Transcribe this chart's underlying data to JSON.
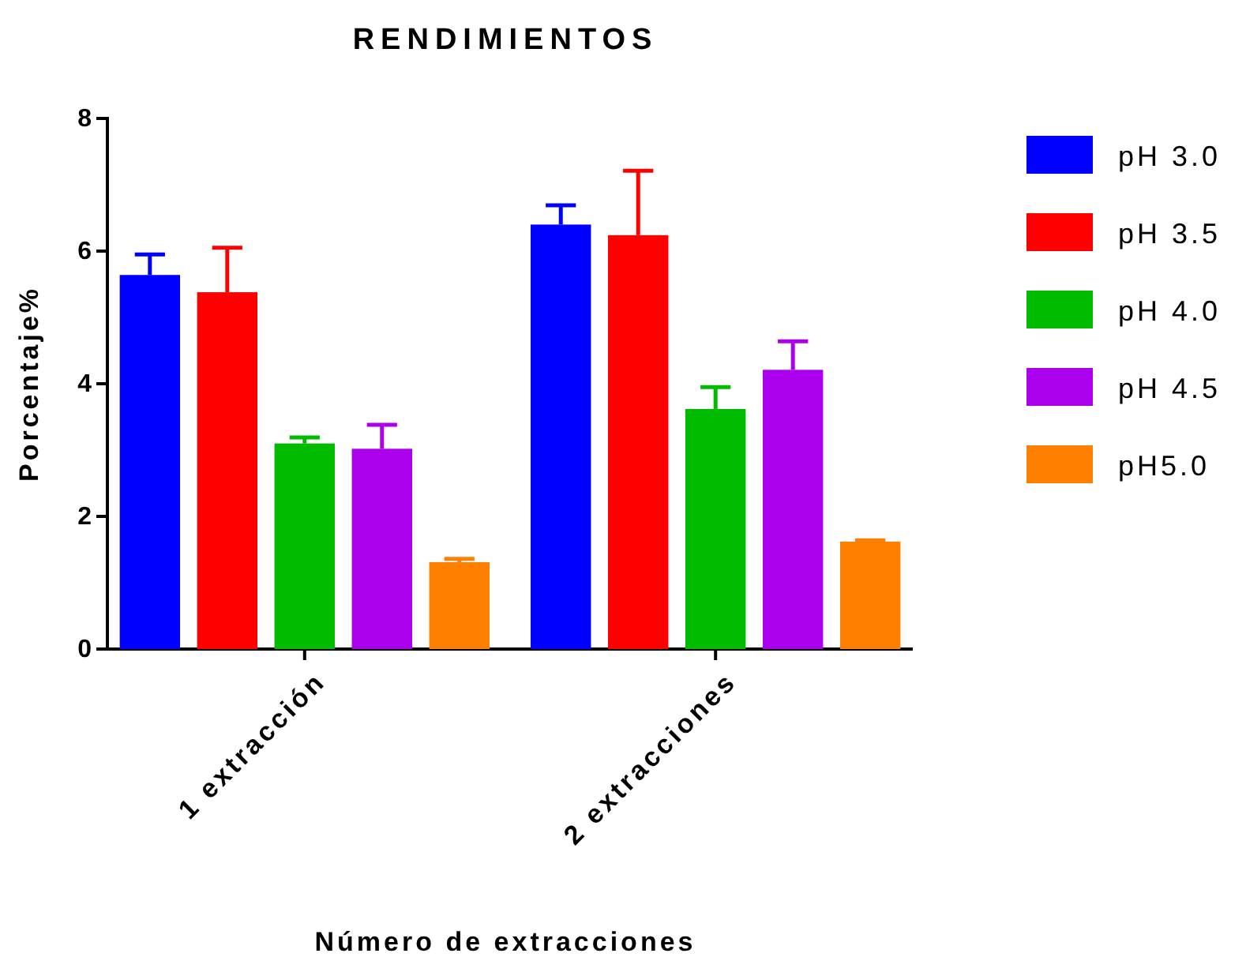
{
  "chart_data": {
    "type": "bar",
    "title": "RENDIMIENTOS",
    "xlabel": "Número de extracciones",
    "ylabel": "Porcentaje%",
    "categories": [
      "1 extracción",
      "2 extracciones"
    ],
    "ylim": [
      0,
      8
    ],
    "yticks": [
      0,
      2,
      4,
      6,
      8
    ],
    "grid": false,
    "legend": "right",
    "series": [
      {
        "name": "pH 3.0",
        "color": "#0000ff",
        "values": [
          5.64,
          6.4
        ],
        "errors": [
          [
            5.64,
            5.95
          ],
          [
            6.4,
            6.69
          ]
        ]
      },
      {
        "name": "pH 3.5",
        "color": "#ff0000",
        "values": [
          5.38,
          6.24
        ],
        "errors": [
          [
            5.38,
            6.05
          ],
          [
            6.24,
            7.21
          ]
        ]
      },
      {
        "name": "pH 4.0",
        "color": "#00bb00",
        "values": [
          3.1,
          3.62
        ],
        "errors": [
          [
            3.1,
            3.19
          ],
          [
            3.62,
            3.95
          ]
        ]
      },
      {
        "name": "pH 4.5",
        "color": "#aa00ee",
        "values": [
          3.02,
          4.21
        ],
        "errors": [
          [
            3.02,
            3.38
          ],
          [
            4.21,
            4.64
          ]
        ]
      },
      {
        "name": "pH5.0",
        "color": "#ff8000",
        "values": [
          1.31,
          1.62
        ],
        "errors": [
          [
            1.31,
            1.36
          ],
          [
            1.62,
            1.64
          ]
        ]
      }
    ]
  }
}
